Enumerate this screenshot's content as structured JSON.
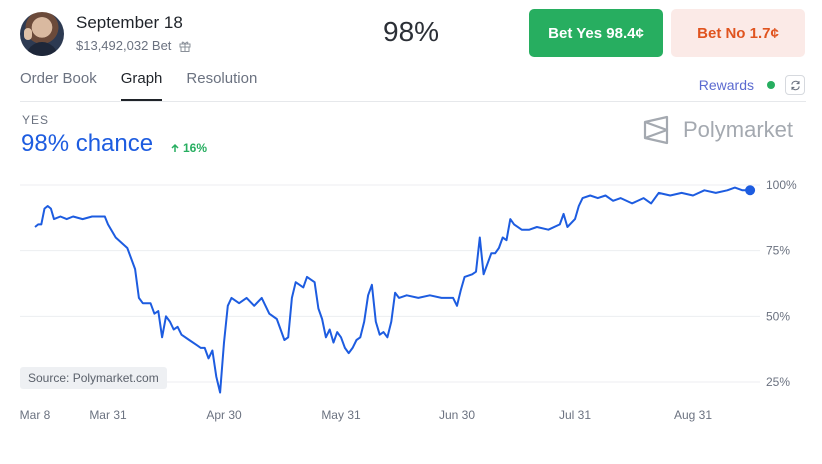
{
  "header": {
    "market_title": "September 18",
    "volume": "$13,492,032 Bet",
    "percent": "98%",
    "yes_button": "Bet Yes 98.4¢",
    "no_button": "Bet No 1.7¢"
  },
  "tabs": [
    {
      "label": "Order Book",
      "active": false
    },
    {
      "label": "Graph",
      "active": true
    },
    {
      "label": "Resolution",
      "active": false
    }
  ],
  "rewards": {
    "label": "Rewards",
    "status_color": "#27ae60"
  },
  "outcome": {
    "label": "YES",
    "chance": "98% chance",
    "change": "16%",
    "change_direction": "up"
  },
  "brand": {
    "name": "Polymarket"
  },
  "source": "Source: Polymarket.com",
  "colors": {
    "line": "#1d5ce0",
    "yes": "#27ae60",
    "no_text": "#e0541f",
    "no_bg": "#fbeae7"
  },
  "icons": {
    "gift": "gift-icon",
    "refresh": "refresh-icon",
    "change": "arrow-up-icon",
    "logo": "polymarket-logo-icon"
  },
  "chart_data": {
    "type": "line",
    "x_ticks": [
      "Mar 8",
      "Mar 31",
      "Apr 30",
      "May 31",
      "Jun 30",
      "Jul 31",
      "Aug 31"
    ],
    "y_ticks": [
      "100%",
      "75%",
      "50%",
      "25%"
    ],
    "ylim": [
      25,
      100
    ],
    "grid": true,
    "series": [
      {
        "values": [
          [
            "Mar 8",
            84
          ],
          [
            "Mar 9",
            85
          ],
          [
            "Mar 10",
            85
          ],
          [
            "Mar 11",
            91
          ],
          [
            "Mar 12",
            92
          ],
          [
            "Mar 13",
            91
          ],
          [
            "Mar 14",
            87
          ],
          [
            "Mar 16",
            88
          ],
          [
            "Mar 18",
            87
          ],
          [
            "Mar 20",
            88
          ],
          [
            "Mar 23",
            87
          ],
          [
            "Mar 26",
            88
          ],
          [
            "Mar 30",
            88
          ],
          [
            "Mar 31",
            85
          ],
          [
            "Apr 2",
            80
          ],
          [
            "Apr 5",
            76
          ],
          [
            "Apr 7",
            68
          ],
          [
            "Apr 8",
            57
          ],
          [
            "Apr 9",
            55
          ],
          [
            "Apr 11",
            55
          ],
          [
            "Apr 12",
            51
          ],
          [
            "Apr 13",
            52
          ],
          [
            "Apr 14",
            42
          ],
          [
            "Apr 15",
            50
          ],
          [
            "Apr 16",
            48
          ],
          [
            "Apr 17",
            45
          ],
          [
            "Apr 18",
            46
          ],
          [
            "Apr 19",
            43
          ],
          [
            "Apr 21",
            41
          ],
          [
            "Apr 23",
            39
          ],
          [
            "Apr 24",
            38
          ],
          [
            "Apr 25",
            38
          ],
          [
            "Apr 26",
            34
          ],
          [
            "Apr 27",
            37
          ],
          [
            "Apr 28",
            27
          ],
          [
            "Apr 29",
            21
          ],
          [
            "Apr 30",
            40
          ],
          [
            "May 1",
            54
          ],
          [
            "May 2",
            57
          ],
          [
            "May 4",
            55
          ],
          [
            "May 6",
            57
          ],
          [
            "May 8",
            54
          ],
          [
            "May 10",
            57
          ],
          [
            "May 12",
            51
          ],
          [
            "May 14",
            49
          ],
          [
            "May 16",
            41
          ],
          [
            "May 17",
            42
          ],
          [
            "May 18",
            57
          ],
          [
            "May 19",
            63
          ],
          [
            "May 21",
            61
          ],
          [
            "May 22",
            65
          ],
          [
            "May 24",
            63
          ],
          [
            "May 25",
            53
          ],
          [
            "May 26",
            49
          ],
          [
            "May 27",
            42
          ],
          [
            "May 28",
            45
          ],
          [
            "May 29",
            40
          ],
          [
            "May 30",
            44
          ],
          [
            "May 31",
            42
          ],
          [
            "Jun 1",
            38
          ],
          [
            "Jun 2",
            36
          ],
          [
            "Jun 3",
            38
          ],
          [
            "Jun 4",
            41
          ],
          [
            "Jun 5",
            42
          ],
          [
            "Jun 6",
            48
          ],
          [
            "Jun 7",
            58
          ],
          [
            "Jun 8",
            62
          ],
          [
            "Jun 9",
            48
          ],
          [
            "Jun 10",
            43
          ],
          [
            "Jun 11",
            44
          ],
          [
            "Jun 12",
            42
          ],
          [
            "Jun 13",
            48
          ],
          [
            "Jun 14",
            59
          ],
          [
            "Jun 15",
            57
          ],
          [
            "Jun 17",
            58
          ],
          [
            "Jun 20",
            57
          ],
          [
            "Jun 23",
            58
          ],
          [
            "Jun 26",
            57
          ],
          [
            "Jun 29",
            57
          ],
          [
            "Jun 30",
            54
          ],
          [
            "Jul 1",
            60
          ],
          [
            "Jul 2",
            65
          ],
          [
            "Jul 4",
            66
          ],
          [
            "Jul 5",
            67
          ],
          [
            "Jul 6",
            80
          ],
          [
            "Jul 7",
            66
          ],
          [
            "Jul 9",
            74
          ],
          [
            "Jul 10",
            74
          ],
          [
            "Jul 11",
            76
          ],
          [
            "Jul 12",
            80
          ],
          [
            "Jul 13",
            79
          ],
          [
            "Jul 14",
            87
          ],
          [
            "Jul 15",
            85
          ],
          [
            "Jul 17",
            83
          ],
          [
            "Jul 19",
            83
          ],
          [
            "Jul 21",
            84
          ],
          [
            "Jul 24",
            83
          ],
          [
            "Jul 27",
            85
          ],
          [
            "Jul 28",
            89
          ],
          [
            "Jul 29",
            84
          ],
          [
            "Jul 31",
            87
          ],
          [
            "Aug 1",
            92
          ],
          [
            "Aug 2",
            95
          ],
          [
            "Aug 4",
            96
          ],
          [
            "Aug 6",
            95
          ],
          [
            "Aug 8",
            96
          ],
          [
            "Aug 10",
            94
          ],
          [
            "Aug 12",
            95
          ],
          [
            "Aug 15",
            93
          ],
          [
            "Aug 18",
            95
          ],
          [
            "Aug 20",
            93
          ],
          [
            "Aug 22",
            97
          ],
          [
            "Aug 25",
            96
          ],
          [
            "Aug 28",
            97
          ],
          [
            "Aug 31",
            96
          ],
          [
            "Sep 3",
            98
          ],
          [
            "Sep 6",
            97
          ],
          [
            "Sep 9",
            98
          ],
          [
            "Sep 11",
            99
          ],
          [
            "Sep 13",
            98
          ],
          [
            "Sep 15",
            98
          ]
        ]
      }
    ],
    "last_point": {
      "x": "Sep 15",
      "y": 98
    }
  }
}
